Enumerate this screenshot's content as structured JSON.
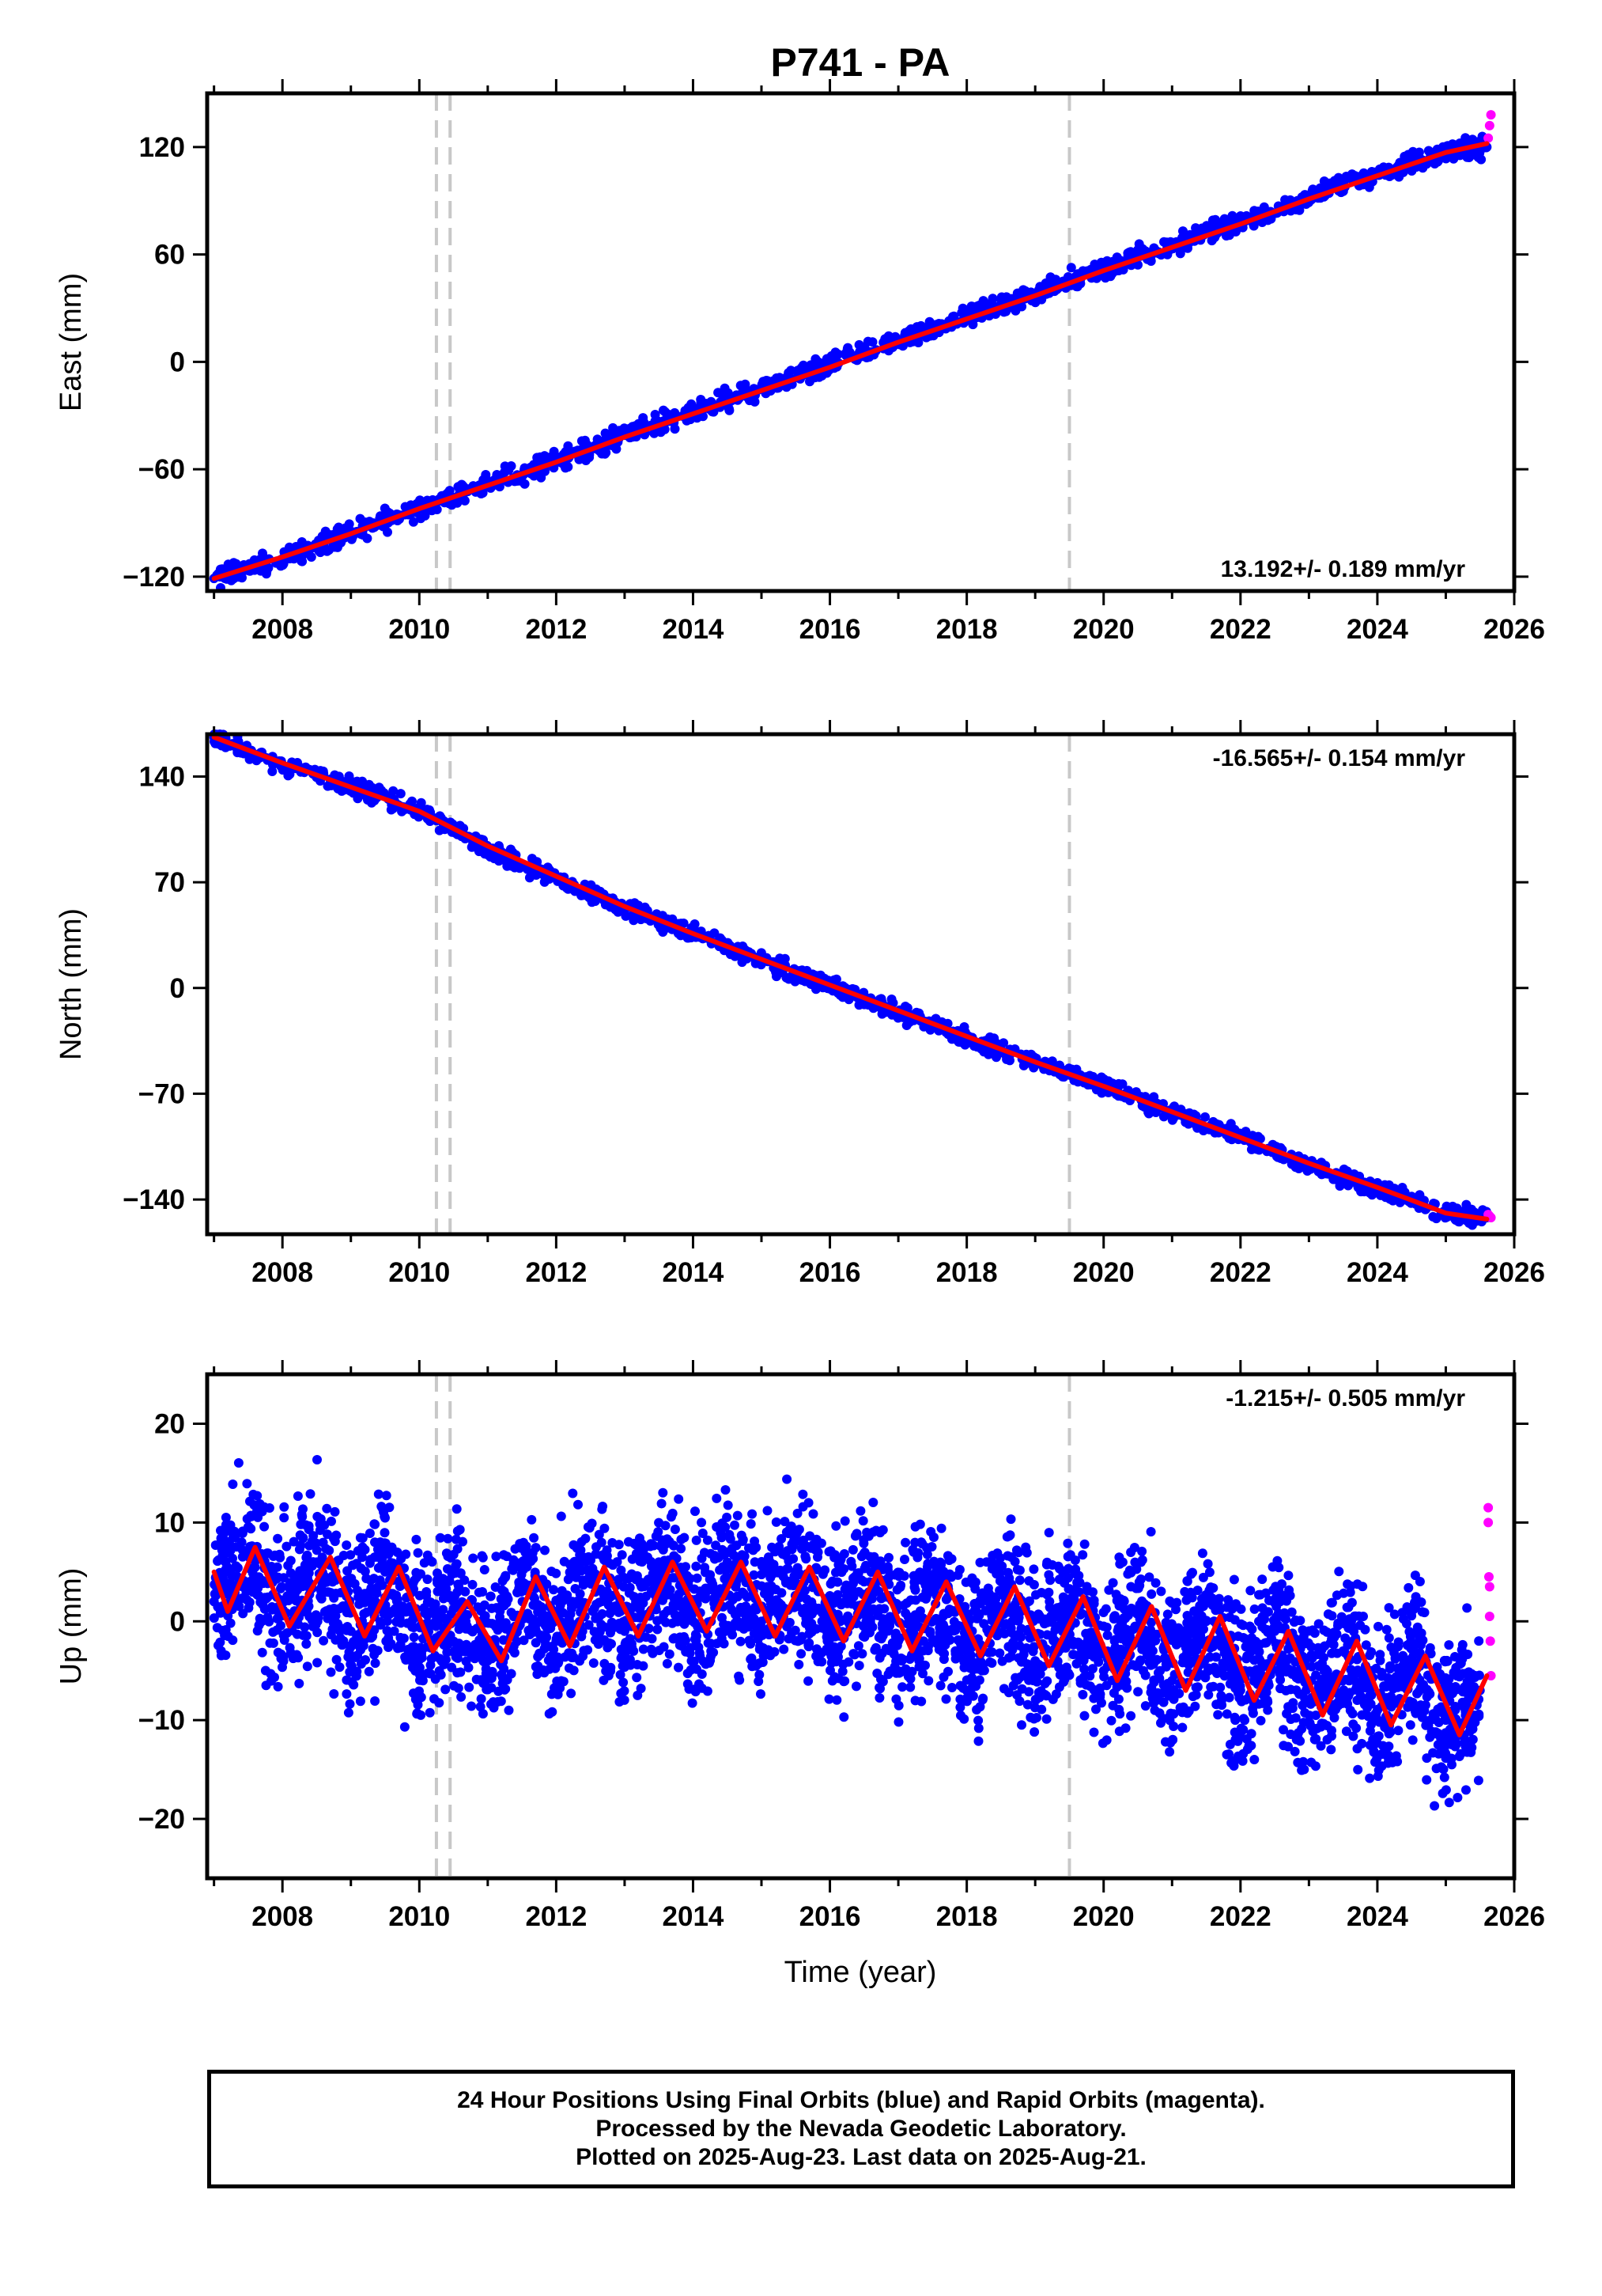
{
  "title": "P741 - PA",
  "x_label": "Time (year)",
  "caption": {
    "line1": "24 Hour Positions Using Final Orbits (blue) and Rapid Orbits (magenta).",
    "line2": "Processed by the Nevada Geodetic Laboratory.",
    "line3": "Plotted on 2025-Aug-23. Last data on 2025-Aug-21."
  },
  "colors": {
    "final_orbits": "#0000ff",
    "rapid_orbits": "#ff00ff",
    "model_fit": "#ff0000",
    "event_lines": "#c8c8c8",
    "frame": "#000000"
  },
  "chart_data": [
    {
      "type": "scatter",
      "component": "east",
      "ylabel": "East (mm)",
      "xlim": [
        2006.9,
        2026.0
      ],
      "ylim": [
        -128,
        150
      ],
      "x_ticks": [
        2008,
        2010,
        2012,
        2014,
        2016,
        2018,
        2020,
        2022,
        2024,
        2026
      ],
      "y_ticks": [
        -120,
        -60,
        0,
        60,
        120
      ],
      "y_tick_labels": [
        "−120",
        "−60",
        "0",
        "60",
        "120"
      ],
      "grid": false,
      "rate_text": "13.192+/- 0.189 mm/yr",
      "rate_position": "bottom-right",
      "event_lines": [
        2010.25,
        2010.45,
        2019.5
      ],
      "series": [
        {
          "role": "final",
          "color": "#0000ff",
          "x": [
            2007.0,
            2008.0,
            2009.0,
            2010.0,
            2011.0,
            2012.0,
            2013.0,
            2014.0,
            2015.0,
            2016.0,
            2017.0,
            2018.0,
            2019.0,
            2020.0,
            2021.0,
            2022.0,
            2023.0,
            2024.0,
            2025.0,
            2025.6
          ],
          "values": [
            -121,
            -110,
            -95,
            -82,
            -68,
            -55,
            -41,
            -28,
            -15,
            -2,
            12,
            25,
            38,
            52,
            65,
            78,
            92,
            105,
            117,
            120
          ]
        },
        {
          "role": "rapid",
          "color": "#ff00ff",
          "x": [
            2025.62,
            2025.64,
            2025.66
          ],
          "values": [
            125,
            132,
            138
          ]
        },
        {
          "role": "model",
          "color": "#ff0000",
          "x": [
            2007.0,
            2008.0,
            2009.0,
            2010.0,
            2011.0,
            2012.0,
            2013.0,
            2014.0,
            2015.0,
            2016.0,
            2017.0,
            2018.0,
            2019.0,
            2020.0,
            2021.0,
            2022.0,
            2023.0,
            2024.0,
            2025.0,
            2025.6
          ],
          "values": [
            -121,
            -109,
            -96,
            -82,
            -69,
            -56,
            -42,
            -29,
            -16,
            -3,
            11,
            24,
            37,
            51,
            64,
            77,
            91,
            104,
            117,
            122
          ]
        }
      ]
    },
    {
      "type": "scatter",
      "component": "north",
      "ylabel": "North (mm)",
      "xlim": [
        2006.9,
        2026.0
      ],
      "ylim": [
        -163,
        168
      ],
      "x_ticks": [
        2008,
        2010,
        2012,
        2014,
        2016,
        2018,
        2020,
        2022,
        2024,
        2026
      ],
      "y_ticks": [
        -140,
        -70,
        0,
        70,
        140
      ],
      "y_tick_labels": [
        "−140",
        "−70",
        "0",
        "70",
        "140"
      ],
      "grid": false,
      "rate_text": "-16.565+/- 0.154 mm/yr",
      "rate_position": "top-right",
      "event_lines": [
        2010.25,
        2010.45,
        2019.5
      ],
      "series": [
        {
          "role": "final",
          "color": "#0000ff",
          "x": [
            2007.0,
            2008.0,
            2009.0,
            2010.0,
            2011.0,
            2012.0,
            2013.0,
            2014.0,
            2015.0,
            2016.0,
            2017.0,
            2018.0,
            2019.0,
            2020.0,
            2021.0,
            2022.0,
            2023.0,
            2024.0,
            2025.0,
            2025.6
          ],
          "values": [
            166,
            148,
            133,
            118,
            92,
            73,
            53,
            36,
            18,
            1,
            -16,
            -33,
            -49,
            -64,
            -82,
            -99,
            -117,
            -133,
            -149,
            -152
          ]
        },
        {
          "role": "rapid",
          "color": "#ff00ff",
          "x": [
            2025.62,
            2025.64,
            2025.66
          ],
          "values": [
            -150,
            -151,
            -152
          ]
        },
        {
          "role": "model",
          "color": "#ff0000",
          "x": [
            2007.0,
            2008.0,
            2009.0,
            2010.0,
            2011.0,
            2012.0,
            2013.0,
            2014.0,
            2015.0,
            2016.0,
            2017.0,
            2018.0,
            2019.0,
            2020.0,
            2021.0,
            2022.0,
            2023.0,
            2024.0,
            2025.0,
            2025.6
          ],
          "values": [
            166,
            149,
            133,
            117,
            94,
            74,
            54,
            36,
            19,
            2,
            -15,
            -32,
            -49,
            -65,
            -82,
            -99,
            -116,
            -132,
            -149,
            -153
          ]
        }
      ]
    },
    {
      "type": "scatter",
      "component": "up",
      "ylabel": "Up (mm)",
      "xlim": [
        2006.9,
        2026.0
      ],
      "ylim": [
        -26,
        25
      ],
      "x_ticks": [
        2008,
        2010,
        2012,
        2014,
        2016,
        2018,
        2020,
        2022,
        2024,
        2026
      ],
      "y_ticks": [
        -20,
        -10,
        0,
        10,
        20
      ],
      "y_tick_labels": [
        "−20",
        "−10",
        "0",
        "10",
        "20"
      ],
      "grid": false,
      "rate_text": "-1.215+/- 0.505 mm/yr",
      "rate_position": "top-right",
      "event_lines": [
        2010.25,
        2010.45,
        2019.5
      ],
      "series": [
        {
          "role": "final",
          "color": "#0000ff",
          "x": [
            2007.0,
            2007.5,
            2008.0,
            2008.5,
            2009.0,
            2009.5,
            2010.0,
            2010.5,
            2011.0,
            2011.5,
            2012.0,
            2012.5,
            2013.0,
            2013.5,
            2014.0,
            2014.5,
            2015.0,
            2015.5,
            2016.0,
            2016.5,
            2017.0,
            2017.5,
            2018.0,
            2018.5,
            2019.0,
            2019.5,
            2020.0,
            2020.5,
            2021.0,
            2021.5,
            2022.0,
            2022.5,
            2023.0,
            2023.5,
            2024.0,
            2024.5,
            2025.0,
            2025.5
          ],
          "values": [
            2,
            7,
            1,
            6,
            -1,
            5,
            -3,
            2,
            -4,
            4,
            -2,
            5,
            -1,
            6,
            0,
            6,
            0,
            5,
            -1,
            4,
            -2,
            3,
            -3,
            3,
            -4,
            2,
            -5,
            1,
            -6,
            0,
            -7,
            -1,
            -8,
            -3,
            -9,
            -4,
            -10,
            -7
          ]
        },
        {
          "role": "rapid",
          "color": "#ff00ff",
          "x": [
            2025.62,
            2025.62,
            2025.63,
            2025.64,
            2025.64,
            2025.65,
            2025.66
          ],
          "values": [
            11.5,
            10,
            4.5,
            3.5,
            0.5,
            -2,
            -5.5
          ]
        },
        {
          "role": "model",
          "color": "#ff0000",
          "x": [
            2007.0,
            2007.2,
            2007.6,
            2008.1,
            2008.7,
            2009.2,
            2009.7,
            2010.2,
            2010.7,
            2011.2,
            2011.7,
            2012.2,
            2012.7,
            2013.2,
            2013.7,
            2014.2,
            2014.7,
            2015.2,
            2015.7,
            2016.2,
            2016.7,
            2017.2,
            2017.7,
            2018.2,
            2018.7,
            2019.2,
            2019.7,
            2020.2,
            2020.7,
            2021.2,
            2021.7,
            2022.2,
            2022.7,
            2023.2,
            2023.7,
            2024.2,
            2024.7,
            2025.2,
            2025.6
          ],
          "values": [
            5,
            1,
            7.5,
            -0.5,
            6.5,
            -1.5,
            5.5,
            -3,
            2,
            -4,
            4.5,
            -2.5,
            5.5,
            -1.5,
            6,
            -1,
            6,
            -1.5,
            5.5,
            -2,
            5,
            -3,
            4,
            -3.5,
            3.5,
            -4.5,
            2.5,
            -6,
            1.5,
            -7,
            0.5,
            -8,
            -1,
            -9.5,
            -2,
            -10.5,
            -3.5,
            -11.5,
            -5.5
          ]
        }
      ]
    }
  ]
}
